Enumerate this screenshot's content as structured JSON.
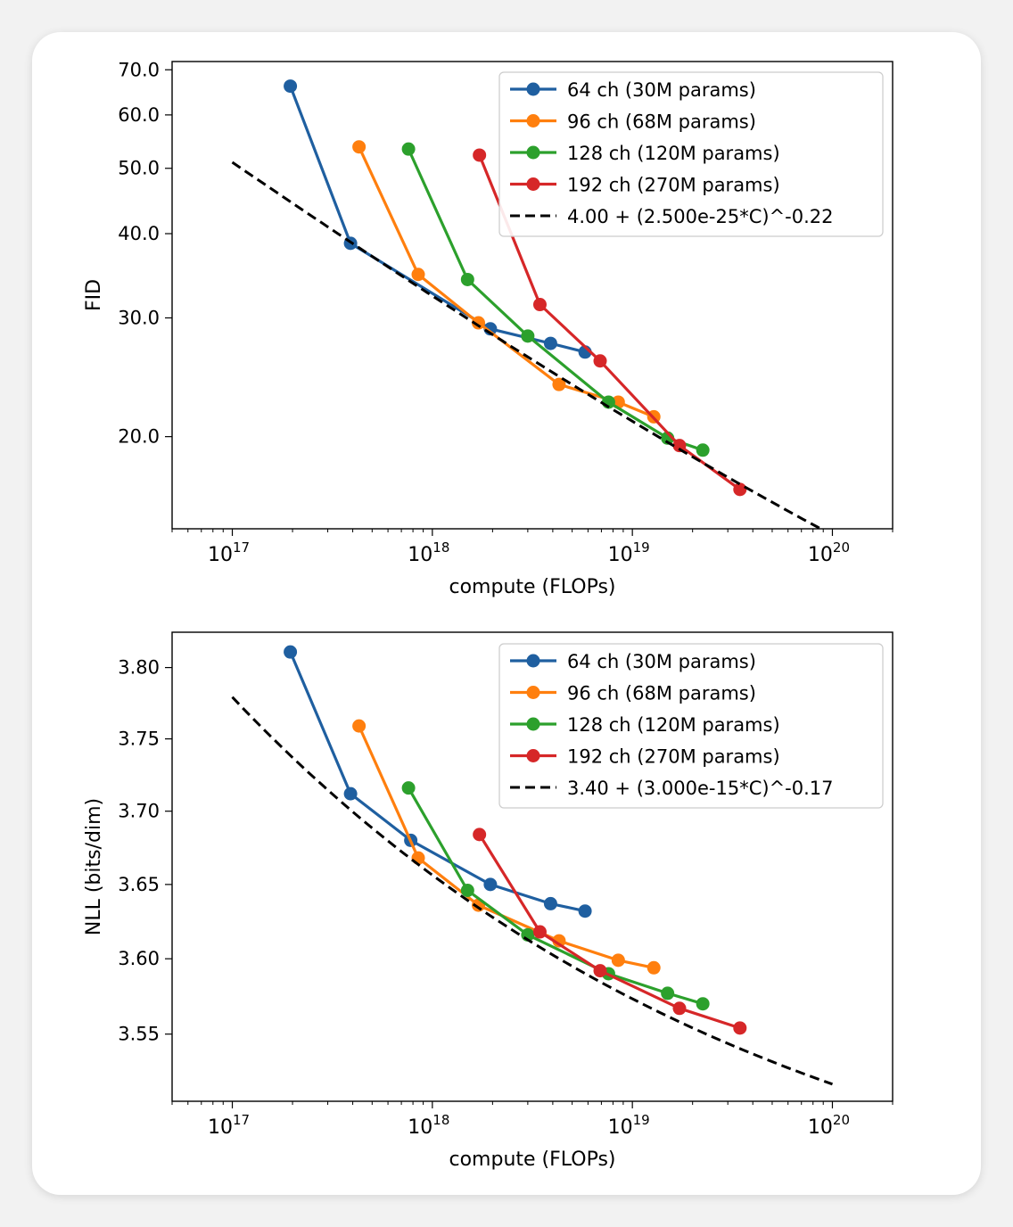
{
  "colors": {
    "64ch": "#1f5fa0",
    "96ch": "#ff7f0e",
    "128ch": "#2ca02c",
    "192ch": "#d62728",
    "fit": "#000000"
  },
  "chart_data": [
    {
      "type": "line",
      "xscale": "log",
      "yscale": "log",
      "xlabel": "compute (FLOPs)",
      "ylabel": "FID",
      "xlim": [
        5e+16,
        2e+20
      ],
      "ylim": [
        14.6,
        72
      ],
      "x_ticks": [
        {
          "value": 1e+17,
          "base": "10",
          "exp": "17"
        },
        {
          "value": 1e+18,
          "base": "10",
          "exp": "18"
        },
        {
          "value": 1e+19,
          "base": "10",
          "exp": "19"
        },
        {
          "value": 1e+20,
          "base": "10",
          "exp": "20"
        }
      ],
      "y_ticks": [
        {
          "value": 20,
          "label": "20.0"
        },
        {
          "value": 30,
          "label": "30.0"
        },
        {
          "value": 40,
          "label": "40.0"
        },
        {
          "value": 50,
          "label": "50.0"
        },
        {
          "value": 60,
          "label": "60.0"
        },
        {
          "value": 70,
          "label": "70.0"
        }
      ],
      "legend_position": "top-right",
      "series": [
        {
          "name": "64 ch (30M params)",
          "color_key": "64ch",
          "x": [
            1.95e+17,
            3.9e+17,
            1.95e+18,
            3.9e+18,
            5.8e+18
          ],
          "y": [
            66.2,
            38.7,
            28.9,
            27.5,
            26.7
          ]
        },
        {
          "name": "96 ch (68M params)",
          "color_key": "96ch",
          "x": [
            4.3e+17,
            8.5e+17,
            1.7e+18,
            4.3e+18,
            8.5e+18,
            1.28e+19
          ],
          "y": [
            53.8,
            34.8,
            29.5,
            23.9,
            22.5,
            21.4
          ]
        },
        {
          "name": "128 ch (120M params)",
          "color_key": "128ch",
          "x": [
            7.6e+17,
            1.5e+18,
            3e+18,
            7.6e+18,
            1.5e+19,
            2.25e+19
          ],
          "y": [
            53.4,
            34.2,
            28.2,
            22.5,
            19.9,
            19.1
          ]
        },
        {
          "name": "192 ch (270M params)",
          "color_key": "192ch",
          "x": [
            1.72e+18,
            3.45e+18,
            6.9e+18,
            1.72e+19,
            3.45e+19
          ],
          "y": [
            52.3,
            31.4,
            25.9,
            19.4,
            16.7
          ]
        }
      ],
      "fit": {
        "label": "4.00 + (2.500e-25*C)^-0.22",
        "a": 4.0,
        "k": 2.5e-25,
        "p": -0.22,
        "x_range": [
          1e+17,
          1e+20
        ]
      }
    },
    {
      "type": "line",
      "xscale": "log",
      "yscale": "log",
      "xlabel": "compute (FLOPs)",
      "ylabel": "NLL (bits/dim)",
      "xlim": [
        5e+16,
        2e+20
      ],
      "ylim": [
        3.506,
        3.825
      ],
      "x_ticks": [
        {
          "value": 1e+17,
          "base": "10",
          "exp": "17"
        },
        {
          "value": 1e+18,
          "base": "10",
          "exp": "18"
        },
        {
          "value": 1e+19,
          "base": "10",
          "exp": "19"
        },
        {
          "value": 1e+20,
          "base": "10",
          "exp": "20"
        }
      ],
      "y_ticks": [
        {
          "value": 3.55,
          "label": "3.55"
        },
        {
          "value": 3.6,
          "label": "3.60"
        },
        {
          "value": 3.65,
          "label": "3.65"
        },
        {
          "value": 3.7,
          "label": "3.70"
        },
        {
          "value": 3.75,
          "label": "3.75"
        },
        {
          "value": 3.8,
          "label": "3.80"
        }
      ],
      "legend_position": "top-right",
      "series": [
        {
          "name": "64 ch (30M params)",
          "color_key": "64ch",
          "x": [
            1.95e+17,
            3.9e+17,
            7.8e+17,
            1.95e+18,
            3.9e+18,
            5.8e+18
          ],
          "y": [
            3.811,
            3.712,
            3.68,
            3.65,
            3.637,
            3.632
          ]
        },
        {
          "name": "96 ch (68M params)",
          "color_key": "96ch",
          "x": [
            4.3e+17,
            8.5e+17,
            1.7e+18,
            4.3e+18,
            8.5e+18,
            1.28e+19
          ],
          "y": [
            3.759,
            3.668,
            3.636,
            3.612,
            3.599,
            3.594
          ]
        },
        {
          "name": "128 ch (120M params)",
          "color_key": "128ch",
          "x": [
            7.6e+17,
            1.5e+18,
            3e+18,
            7.6e+18,
            1.5e+19,
            2.25e+19
          ],
          "y": [
            3.716,
            3.646,
            3.616,
            3.59,
            3.577,
            3.57
          ]
        },
        {
          "name": "192 ch (270M params)",
          "color_key": "192ch",
          "x": [
            1.72e+18,
            3.45e+18,
            6.9e+18,
            1.72e+19,
            3.45e+19
          ],
          "y": [
            3.684,
            3.618,
            3.592,
            3.567,
            3.554
          ]
        }
      ],
      "fit": {
        "label": "3.40 + (3.000e-15*C)^-0.17",
        "a": 3.4,
        "k": 3e-15,
        "p": -0.17,
        "x_range": [
          1e+17,
          1e+20
        ]
      }
    }
  ]
}
